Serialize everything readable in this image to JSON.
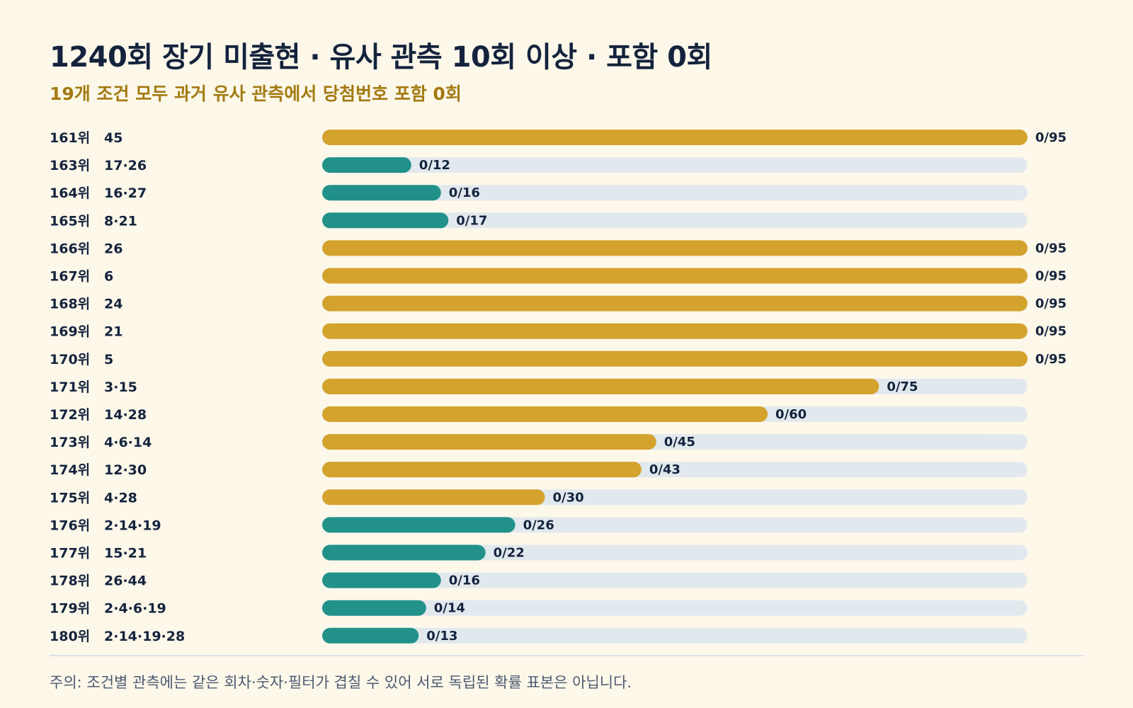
{
  "title": "1240회 장기 미출현 · 유사 관측 10회 이상 · 포함 0회",
  "subtitle": "19개 조건 모두 과거 유사 관측에서 당첨번호 포함 0회",
  "note": "주의: 조건별 관측에는 같은 회차·숫자·필터가 겹칠 수 있어 서로 독립된 확률 표본은 아닙니다.",
  "colors": {
    "gold": "#d4a32e",
    "teal": "#21918a",
    "track": "#e2e9ee",
    "text": "#14233d"
  },
  "chart_data": {
    "type": "bar",
    "orientation": "horizontal",
    "xlim": [
      0,
      95
    ],
    "categories": [
      {
        "rank": "161위",
        "numbers": "45"
      },
      {
        "rank": "163위",
        "numbers": "17·26"
      },
      {
        "rank": "164위",
        "numbers": "16·27"
      },
      {
        "rank": "165위",
        "numbers": "8·21"
      },
      {
        "rank": "166위",
        "numbers": "26"
      },
      {
        "rank": "167위",
        "numbers": "6"
      },
      {
        "rank": "168위",
        "numbers": "24"
      },
      {
        "rank": "169위",
        "numbers": "21"
      },
      {
        "rank": "170위",
        "numbers": "5"
      },
      {
        "rank": "171위",
        "numbers": "3·15"
      },
      {
        "rank": "172위",
        "numbers": "14·28"
      },
      {
        "rank": "173위",
        "numbers": "4·6·14"
      },
      {
        "rank": "174위",
        "numbers": "12·30"
      },
      {
        "rank": "175위",
        "numbers": "4·28"
      },
      {
        "rank": "176위",
        "numbers": "2·14·19"
      },
      {
        "rank": "177위",
        "numbers": "15·21"
      },
      {
        "rank": "178위",
        "numbers": "26·44"
      },
      {
        "rank": "179위",
        "numbers": "2·4·6·19"
      },
      {
        "rank": "180위",
        "numbers": "2·14·19·28"
      }
    ],
    "values": [
      95,
      12,
      16,
      17,
      95,
      95,
      95,
      95,
      95,
      75,
      60,
      45,
      43,
      30,
      26,
      22,
      16,
      14,
      13
    ],
    "hits": [
      0,
      0,
      0,
      0,
      0,
      0,
      0,
      0,
      0,
      0,
      0,
      0,
      0,
      0,
      0,
      0,
      0,
      0,
      0
    ],
    "value_labels": [
      "0/95",
      "0/12",
      "0/16",
      "0/17",
      "0/95",
      "0/95",
      "0/95",
      "0/95",
      "0/95",
      "0/75",
      "0/60",
      "0/45",
      "0/43",
      "0/30",
      "0/26",
      "0/22",
      "0/16",
      "0/14",
      "0/13"
    ],
    "bar_colors": [
      "gold",
      "teal",
      "teal",
      "teal",
      "gold",
      "gold",
      "gold",
      "gold",
      "gold",
      "gold",
      "gold",
      "gold",
      "gold",
      "gold",
      "teal",
      "teal",
      "teal",
      "teal",
      "teal"
    ]
  }
}
